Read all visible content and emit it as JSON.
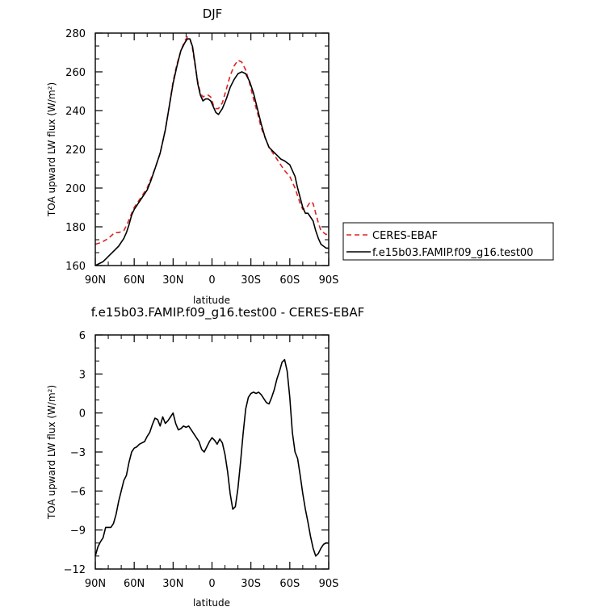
{
  "chart_data": [
    {
      "type": "line",
      "title": "DJF",
      "xlabel": "latitude",
      "ylabel": "TOA upward LW flux (W/m²)",
      "xlim": [
        90,
        -90
      ],
      "ylim": [
        160,
        280
      ],
      "xticks": [
        90,
        60,
        30,
        0,
        -30,
        -60,
        -90
      ],
      "xtick_labels": [
        "90N",
        "60N",
        "30N",
        "0",
        "30S",
        "60S",
        "90S"
      ],
      "yticks": [
        160,
        180,
        200,
        220,
        240,
        260,
        280
      ],
      "ytick_labels": [
        "160",
        "180",
        "200",
        "220",
        "240",
        "260",
        "280"
      ],
      "legend_position": "right",
      "series": [
        {
          "name": "CERES-EBAF",
          "color": "#dd2222",
          "dash": "dashed",
          "x": [
            90,
            85,
            80,
            75,
            72,
            68,
            65,
            62,
            60,
            57,
            54,
            50,
            47,
            44,
            40,
            36,
            33,
            30,
            27,
            24,
            21,
            19,
            17,
            15,
            13,
            11,
            9,
            7,
            5,
            3,
            1,
            -1,
            -3,
            -5,
            -8,
            -11,
            -14,
            -17,
            -20,
            -23,
            -26,
            -29,
            -32,
            -35,
            -38,
            -41,
            -44,
            -47,
            -50,
            -53,
            -56,
            -60,
            -64,
            -68,
            -70,
            -73,
            -76,
            -78,
            -80,
            -82,
            -84,
            -86,
            -88,
            -90
          ],
          "y": [
            171,
            172,
            174,
            177,
            177,
            178,
            182,
            187,
            190,
            193,
            196,
            200,
            205,
            210,
            218,
            230,
            242,
            255,
            264,
            271,
            276,
            278,
            277,
            272,
            263,
            255,
            249,
            247,
            248,
            248,
            247,
            243,
            241,
            241,
            244,
            251,
            258,
            263,
            266,
            265,
            261,
            254,
            246,
            239,
            231,
            226,
            221,
            218,
            215,
            212,
            209,
            206,
            200,
            192,
            189,
            190,
            193,
            192,
            187,
            182,
            178,
            177,
            176,
            177
          ]
        },
        {
          "name": "f.e15b03.FAMIP.f09_g16.test00",
          "color": "#000000",
          "dash": "solid",
          "x": [
            90,
            87,
            84,
            81,
            78,
            75,
            72,
            70,
            68,
            66,
            64,
            62,
            60,
            57,
            54,
            50,
            47,
            44,
            40,
            36,
            33,
            30,
            27,
            24,
            21,
            19,
            17,
            15,
            13,
            11,
            9,
            7,
            5,
            3,
            1,
            -1,
            -3,
            -5,
            -8,
            -11,
            -14,
            -17,
            -20,
            -23,
            -26,
            -29,
            -32,
            -35,
            -38,
            -41,
            -44,
            -47,
            -50,
            -53,
            -56,
            -60,
            -64,
            -66,
            -68,
            -70,
            -72,
            -74,
            -76,
            -78,
            -80,
            -82,
            -84,
            -86,
            -88,
            -90
          ],
          "y": [
            160,
            161,
            162,
            164,
            166,
            168,
            170,
            172,
            174,
            177,
            181,
            186,
            189,
            192,
            195,
            199,
            204,
            210,
            218,
            230,
            242,
            254,
            263,
            271,
            275,
            277,
            277,
            273,
            264,
            254,
            248,
            245,
            246,
            246,
            245,
            242,
            239,
            238,
            241,
            246,
            252,
            256,
            259,
            260,
            259,
            255,
            249,
            241,
            233,
            226,
            221,
            219,
            217,
            215,
            214,
            212,
            206,
            200,
            195,
            190,
            187,
            187,
            185,
            183,
            178,
            174,
            171,
            170,
            169,
            169
          ]
        }
      ]
    },
    {
      "type": "line",
      "title": "f.e15b03.FAMIP.f09_g16.test00 - CERES-EBAF",
      "xlabel": "latitude",
      "ylabel": "TOA upward LW flux (W/m²)",
      "xlim": [
        90,
        -90
      ],
      "ylim": [
        -12,
        6
      ],
      "xticks": [
        90,
        60,
        30,
        0,
        -30,
        -60,
        -90
      ],
      "xtick_labels": [
        "90N",
        "60N",
        "30N",
        "0",
        "30S",
        "60S",
        "90S"
      ],
      "yticks": [
        -12,
        -9,
        -6,
        -3,
        0,
        3,
        6
      ],
      "ytick_labels": [
        "−12",
        "−9",
        "−6",
        "−3",
        "0",
        "3",
        "6"
      ],
      "series": [
        {
          "color": "#000000",
          "dash": "solid",
          "x": [
            90,
            88,
            86,
            84,
            82,
            80,
            78,
            76,
            74,
            72,
            70,
            68,
            66,
            64,
            62,
            60,
            58,
            56,
            54,
            52,
            50,
            48,
            46,
            44,
            42,
            40,
            38,
            36,
            34,
            32,
            30,
            28,
            26,
            24,
            22,
            20,
            18,
            16,
            14,
            12,
            10,
            8,
            6,
            4,
            2,
            0,
            -2,
            -4,
            -6,
            -8,
            -10,
            -12,
            -14,
            -16,
            -18,
            -20,
            -22,
            -24,
            -26,
            -28,
            -30,
            -32,
            -34,
            -36,
            -38,
            -40,
            -42,
            -44,
            -46,
            -48,
            -50,
            -52,
            -54,
            -56,
            -58,
            -60,
            -62,
            -64,
            -66,
            -68,
            -70,
            -72,
            -74,
            -76,
            -78,
            -80,
            -82,
            -84,
            -86,
            -88,
            -90
          ],
          "y": [
            -11.0,
            -10.3,
            -9.9,
            -9.6,
            -8.8,
            -8.8,
            -8.8,
            -8.5,
            -7.8,
            -6.8,
            -6.0,
            -5.2,
            -4.8,
            -3.8,
            -3.0,
            -2.7,
            -2.6,
            -2.4,
            -2.3,
            -2.2,
            -1.8,
            -1.5,
            -0.9,
            -0.4,
            -0.5,
            -1.0,
            -0.3,
            -0.8,
            -0.6,
            -0.3,
            0.0,
            -0.8,
            -1.3,
            -1.2,
            -1.0,
            -1.1,
            -1.0,
            -1.3,
            -1.6,
            -1.9,
            -2.2,
            -2.8,
            -3.0,
            -2.6,
            -2.2,
            -1.9,
            -2.1,
            -2.4,
            -2.0,
            -2.3,
            -3.2,
            -4.5,
            -6.2,
            -7.4,
            -7.2,
            -5.8,
            -3.8,
            -1.6,
            0.3,
            1.2,
            1.5,
            1.6,
            1.5,
            1.6,
            1.4,
            1.1,
            0.8,
            0.7,
            1.2,
            1.8,
            2.6,
            3.2,
            3.9,
            4.1,
            3.2,
            1.2,
            -1.5,
            -3.0,
            -3.5,
            -4.8,
            -6.2,
            -7.4,
            -8.4,
            -9.5,
            -10.4,
            -11.0,
            -10.8,
            -10.4,
            -10.1,
            -10.0,
            -10.0
          ]
        }
      ]
    }
  ]
}
